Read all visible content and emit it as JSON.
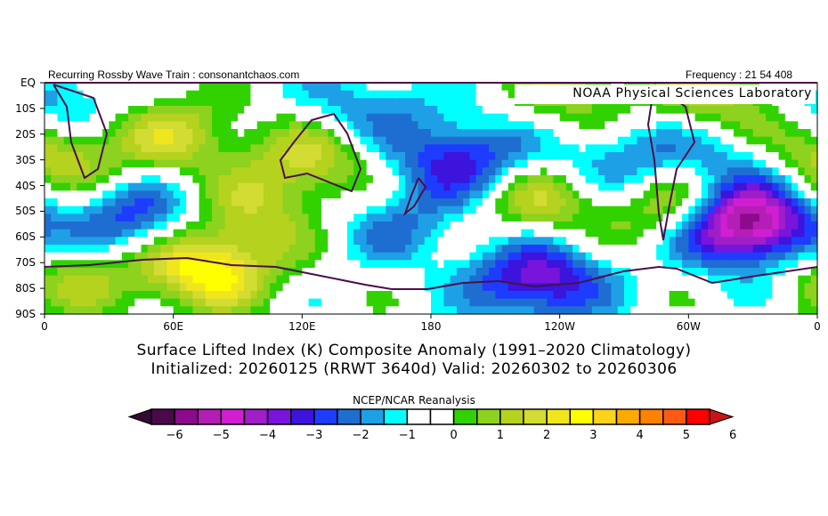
{
  "header": {
    "left": "Recurring Rossby Wave Train : consonantchaos.com",
    "right": "Frequency : 21 54 408",
    "credit": "NOAA Physical Sciences Laboratory"
  },
  "titles": {
    "line1": "Surface Lifted Index (K) Composite Anomaly (1991–2020 Climatology)",
    "line2": "Initialized: 20260125 (RRWT 3640d) Valid: 20260302 to 20260306"
  },
  "chart_data": {
    "type": "heatmap",
    "title": "Surface Lifted Index (K) Composite Anomaly (1991–2020 Climatology)",
    "units": "K",
    "lat_ticks": [
      "EQ",
      "10S",
      "20S",
      "30S",
      "40S",
      "50S",
      "60S",
      "70S",
      "80S",
      "90S"
    ],
    "lon_ticks": [
      "0",
      "60E",
      "120E",
      "180",
      "120W",
      "60W",
      "0"
    ],
    "lat_range": [
      0,
      -90
    ],
    "lon_range": [
      0,
      360
    ],
    "anomaly_centers": [
      {
        "lon": 325,
        "lat": -55,
        "value": -6
      },
      {
        "lon": 230,
        "lat": -77,
        "value": -3.5
      },
      {
        "lon": 195,
        "lat": -30,
        "value": -3
      },
      {
        "lon": 40,
        "lat": -53,
        "value": -2.5
      },
      {
        "lon": 75,
        "lat": -72,
        "value": 3.5
      },
      {
        "lon": 125,
        "lat": -30,
        "value": 2
      },
      {
        "lon": 295,
        "lat": -48,
        "value": 2.5
      },
      {
        "lon": 230,
        "lat": -45,
        "value": 2
      },
      {
        "lon": 5,
        "lat": -30,
        "value": 2
      },
      {
        "lon": 2,
        "lat": -10,
        "value": -2.5
      },
      {
        "lon": 270,
        "lat": -30,
        "value": -2
      },
      {
        "lon": 330,
        "lat": -28,
        "value": -2
      },
      {
        "lon": 350,
        "lat": -20,
        "value": 2
      },
      {
        "lon": 320,
        "lat": -5,
        "value": 2
      },
      {
        "lon": 165,
        "lat": -55,
        "value": -1.5
      },
      {
        "lon": 100,
        "lat": -50,
        "value": 1.5
      },
      {
        "lon": 15,
        "lat": -75,
        "value": 1.5
      },
      {
        "lon": 150,
        "lat": -10,
        "value": -1.5
      },
      {
        "lon": 250,
        "lat": -5,
        "value": 1.5
      },
      {
        "lon": 60,
        "lat": -20,
        "value": 2
      }
    ],
    "colorbar": {
      "title": "NCEP/NCAR Reanalysis",
      "ticks": [
        "-6",
        "-5",
        "-4",
        "-3",
        "-2",
        "-1",
        "0",
        "1",
        "2",
        "3",
        "4",
        "5",
        "6"
      ],
      "levels_min": -6,
      "levels_max": 6,
      "step": 0.5,
      "colors": [
        "#4a0a4a",
        "#8c0a8c",
        "#b41eb4",
        "#d21ed2",
        "#a01ec8",
        "#7814dc",
        "#3c14dc",
        "#1e3cff",
        "#1e6ed2",
        "#1ea0e6",
        "#00ffff",
        "#ffffff",
        "#ffffff",
        "#32d200",
        "#8cd21e",
        "#b4d21e",
        "#d2dc32",
        "#f0e61e",
        "#ffff00",
        "#ffd21e",
        "#ffaa00",
        "#ff8200",
        "#ff5a14",
        "#ff0000"
      ],
      "under_color": "#320a32",
      "over_color": "#c81414"
    },
    "coast_color": "#4b0f4b"
  }
}
